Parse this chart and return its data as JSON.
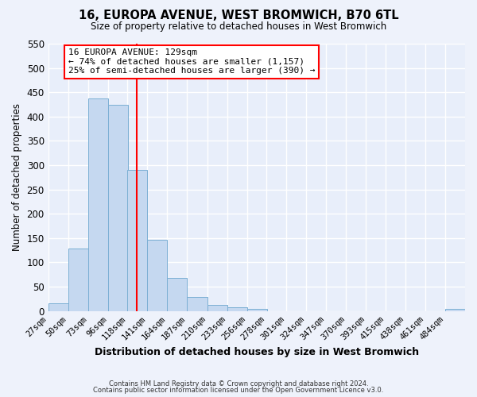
{
  "title": "16, EUROPA AVENUE, WEST BROMWICH, B70 6TL",
  "subtitle": "Size of property relative to detached houses in West Bromwich",
  "xlabel": "Distribution of detached houses by size in West Bromwich",
  "ylabel": "Number of detached properties",
  "bin_edges": [
    27,
    50,
    73,
    96,
    118,
    141,
    164,
    187,
    210,
    233,
    256,
    278,
    301,
    324,
    347,
    370,
    393,
    415,
    438,
    461,
    484,
    507
  ],
  "bar_heights": [
    15,
    128,
    438,
    425,
    291,
    146,
    68,
    29,
    13,
    7,
    4,
    0,
    0,
    0,
    0,
    0,
    0,
    0,
    0,
    0,
    5
  ],
  "bar_color": "#c5d8f0",
  "bar_edge_color": "#7bafd4",
  "vline_x": 129,
  "vline_color": "red",
  "ylim": [
    0,
    550
  ],
  "yticks": [
    0,
    50,
    100,
    150,
    200,
    250,
    300,
    350,
    400,
    450,
    500,
    550
  ],
  "annotation_title": "16 EUROPA AVENUE: 129sqm",
  "annotation_line1": "← 74% of detached houses are smaller (1,157)",
  "annotation_line2": "25% of semi-detached houses are larger (390) →",
  "annotation_box_color": "white",
  "annotation_box_edge_color": "red",
  "footnote1": "Contains HM Land Registry data © Crown copyright and database right 2024.",
  "footnote2": "Contains public sector information licensed under the Open Government Licence v3.0.",
  "tick_labels": [
    "27sqm",
    "50sqm",
    "73sqm",
    "96sqm",
    "118sqm",
    "141sqm",
    "164sqm",
    "187sqm",
    "210sqm",
    "233sqm",
    "256sqm",
    "278sqm",
    "301sqm",
    "324sqm",
    "347sqm",
    "370sqm",
    "393sqm",
    "415sqm",
    "438sqm",
    "461sqm",
    "484sqm"
  ],
  "background_color": "#eef2fb",
  "grid_color": "#ffffff",
  "plot_bg_color": "#e8eefa"
}
